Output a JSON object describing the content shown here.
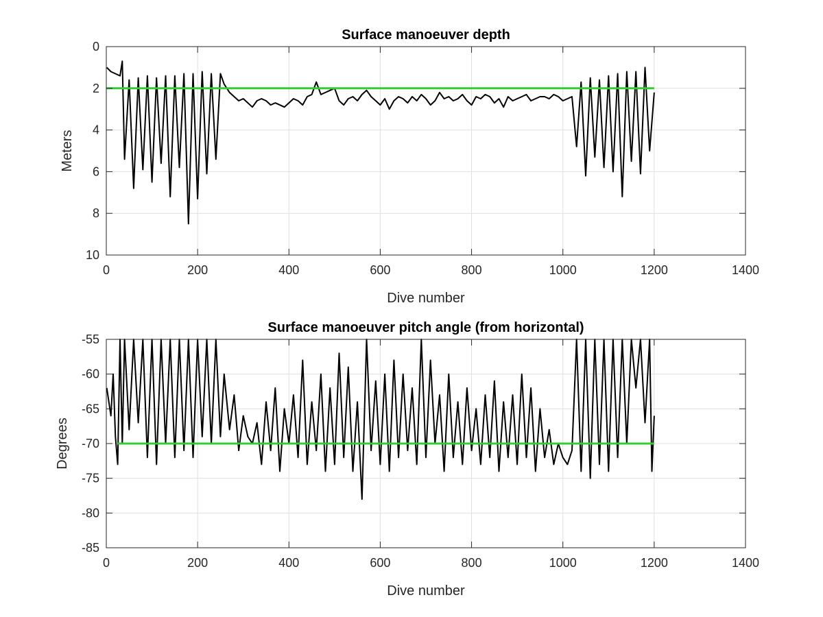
{
  "chart_data": [
    {
      "type": "line",
      "title": "Surface manoeuver depth",
      "xlabel": "Dive number",
      "ylabel": "Meters",
      "xlim": [
        0,
        1400
      ],
      "ylim": [
        0,
        10
      ],
      "y_reversed": true,
      "xticks": [
        0,
        200,
        400,
        600,
        800,
        1000,
        1200,
        1400
      ],
      "yticks": [
        0,
        2,
        4,
        6,
        8,
        10
      ],
      "grid": true,
      "colors": {
        "series": "#000000",
        "reference": "#33cc33"
      },
      "reference_line": {
        "y": 2,
        "x_range": [
          0,
          1200
        ]
      },
      "series": [
        {
          "x": [
            1,
            10,
            20,
            30,
            35,
            40,
            50,
            60,
            70,
            80,
            90,
            100,
            110,
            120,
            130,
            140,
            150,
            160,
            170,
            180,
            190,
            200,
            210,
            220,
            230,
            240,
            250,
            258,
            270,
            280,
            290,
            300,
            310,
            320,
            330,
            340,
            350,
            360,
            370,
            380,
            390,
            400,
            410,
            420,
            430,
            440,
            450,
            460,
            470,
            480,
            490,
            500,
            510,
            520,
            530,
            540,
            550,
            560,
            570,
            580,
            590,
            600,
            610,
            620,
            630,
            640,
            650,
            660,
            670,
            680,
            690,
            700,
            710,
            720,
            730,
            740,
            750,
            760,
            770,
            780,
            790,
            800,
            810,
            820,
            830,
            840,
            850,
            860,
            870,
            880,
            890,
            900,
            910,
            920,
            930,
            940,
            950,
            960,
            970,
            980,
            990,
            1000,
            1010,
            1020,
            1030,
            1040,
            1050,
            1060,
            1070,
            1080,
            1090,
            1100,
            1110,
            1120,
            1130,
            1140,
            1150,
            1160,
            1170,
            1180,
            1190,
            1200
          ],
          "y": [
            1.0,
            1.2,
            1.3,
            1.4,
            0.7,
            5.4,
            1.6,
            6.8,
            1.5,
            5.9,
            1.4,
            6.5,
            1.5,
            5.6,
            1.4,
            7.2,
            1.4,
            5.8,
            1.3,
            8.5,
            1.3,
            7.3,
            1.2,
            6.1,
            1.3,
            5.4,
            1.3,
            1.8,
            2.2,
            2.4,
            2.6,
            2.5,
            2.7,
            2.9,
            2.6,
            2.5,
            2.6,
            2.8,
            2.7,
            2.8,
            2.9,
            2.7,
            2.5,
            2.6,
            2.8,
            2.4,
            2.3,
            1.7,
            2.3,
            2.2,
            2.1,
            2.0,
            2.6,
            2.8,
            2.5,
            2.4,
            2.6,
            2.3,
            2.1,
            2.4,
            2.6,
            2.8,
            2.5,
            3.0,
            2.6,
            2.4,
            2.5,
            2.7,
            2.4,
            2.6,
            2.3,
            2.5,
            2.8,
            2.6,
            2.2,
            2.5,
            2.4,
            2.6,
            2.5,
            2.3,
            2.6,
            2.8,
            2.4,
            2.5,
            2.3,
            2.4,
            2.7,
            2.5,
            2.9,
            2.4,
            2.6,
            2.5,
            2.4,
            2.3,
            2.6,
            2.5,
            2.4,
            2.4,
            2.5,
            2.3,
            2.4,
            2.6,
            2.5,
            2.4,
            4.8,
            1.7,
            6.2,
            1.5,
            5.3,
            1.6,
            5.8,
            1.4,
            6.0,
            1.3,
            7.2,
            1.2,
            5.5,
            1.2,
            6.1,
            1.0,
            5.0,
            2.2
          ]
        }
      ]
    },
    {
      "type": "line",
      "title": "Surface manoeuver pitch angle (from horizontal)",
      "xlabel": "Dive number",
      "ylabel": "Degrees",
      "xlim": [
        0,
        1400
      ],
      "ylim": [
        -85,
        -55
      ],
      "xticks": [
        0,
        200,
        400,
        600,
        800,
        1000,
        1200,
        1400
      ],
      "yticks": [
        -55,
        -60,
        -65,
        -70,
        -75,
        -80,
        -85
      ],
      "grid": true,
      "colors": {
        "series": "#000000",
        "reference": "#33cc33"
      },
      "reference_line": {
        "y": -70,
        "x_range": [
          25,
          1200
        ]
      },
      "series": [
        {
          "x": [
            1,
            10,
            15,
            20,
            25,
            30,
            35,
            40,
            50,
            60,
            70,
            80,
            90,
            100,
            110,
            120,
            130,
            140,
            150,
            160,
            170,
            180,
            190,
            200,
            210,
            220,
            230,
            240,
            250,
            258,
            270,
            280,
            290,
            300,
            310,
            320,
            330,
            340,
            350,
            360,
            370,
            380,
            390,
            400,
            410,
            420,
            430,
            440,
            450,
            460,
            470,
            480,
            490,
            500,
            510,
            520,
            530,
            540,
            550,
            560,
            570,
            580,
            590,
            600,
            610,
            620,
            630,
            640,
            650,
            660,
            670,
            680,
            690,
            700,
            710,
            720,
            730,
            740,
            750,
            760,
            770,
            780,
            790,
            800,
            810,
            820,
            830,
            840,
            850,
            860,
            870,
            880,
            890,
            900,
            910,
            920,
            930,
            940,
            950,
            960,
            970,
            980,
            990,
            1000,
            1010,
            1020,
            1030,
            1040,
            1050,
            1060,
            1070,
            1080,
            1090,
            1100,
            1110,
            1120,
            1130,
            1140,
            1150,
            1160,
            1170,
            1180,
            1190,
            1195,
            1200
          ],
          "y": [
            -62,
            -66,
            -60,
            -69,
            -73,
            -55,
            -70,
            -55,
            -68,
            -55,
            -67,
            -55,
            -72,
            -55,
            -73,
            -55,
            -70,
            -55,
            -72,
            -55,
            -71,
            -55,
            -72,
            -55,
            -69,
            -55,
            -70,
            -55,
            -69,
            -60,
            -68,
            -63,
            -71,
            -66,
            -69,
            -70,
            -67,
            -73,
            -64,
            -71,
            -62,
            -74,
            -65,
            -70,
            -63,
            -72,
            -58,
            -73,
            -64,
            -71,
            -60,
            -74,
            -62,
            -73,
            -57,
            -72,
            -59,
            -74,
            -64,
            -78,
            -55,
            -71,
            -61,
            -73,
            -60,
            -74,
            -58,
            -72,
            -60,
            -71,
            -62,
            -73,
            -55,
            -72,
            -58,
            -70,
            -63,
            -74,
            -60,
            -72,
            -64,
            -73,
            -62,
            -71,
            -65,
            -73,
            -63,
            -72,
            -61,
            -74,
            -64,
            -72,
            -63,
            -73,
            -60,
            -72,
            -62,
            -74,
            -65,
            -72,
            -68,
            -73,
            -70,
            -72,
            -73,
            -71,
            -55,
            -74,
            -55,
            -75,
            -55,
            -73,
            -55,
            -74,
            -55,
            -72,
            -55,
            -70,
            -55,
            -62,
            -55,
            -67,
            -55,
            -74,
            -66
          ]
        }
      ]
    }
  ]
}
